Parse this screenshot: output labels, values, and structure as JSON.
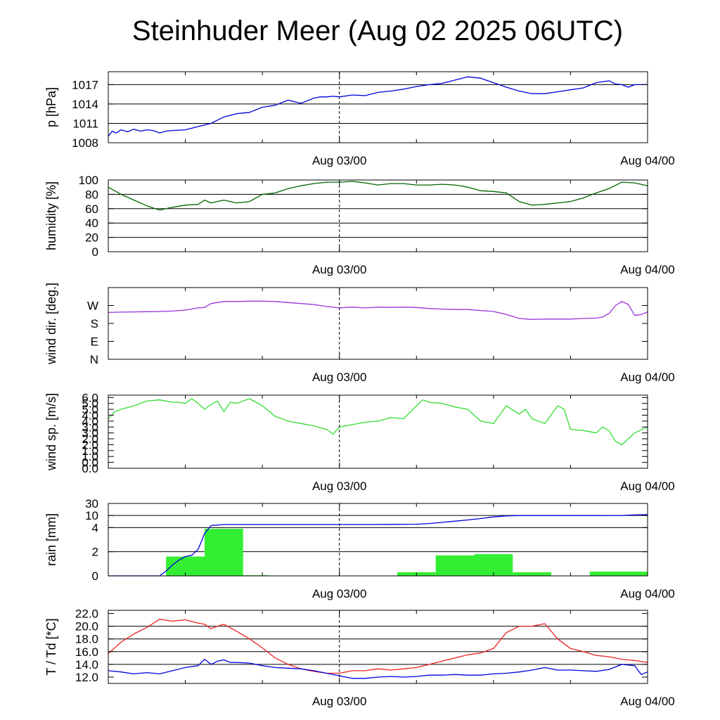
{
  "title": "Steinhuder Meer (Aug 02 2025 06UTC)",
  "x_axis": {
    "start_hours_before_first_label": 18,
    "end_hours_after_first_label": 24,
    "labels": [
      "Aug 03/00",
      "Aug 04/00"
    ]
  },
  "chart_data": [
    {
      "type": "line",
      "ylabel": "p [hPa]",
      "ylim": [
        1008,
        1019
      ],
      "yticks": [
        1008,
        1011,
        1014,
        1017
      ],
      "ytick_labels": [
        "1008",
        "1011",
        "1014",
        "1017"
      ],
      "gridlines": [
        1011,
        1014,
        1017
      ],
      "grid": true,
      "series": [
        {
          "color": "#0000dd",
          "x": [
            0,
            0.3,
            0.6,
            1,
            1.5,
            2,
            2.5,
            3,
            3.5,
            4,
            4.5,
            5,
            6,
            7,
            8,
            9,
            10,
            11,
            12,
            13,
            14,
            15,
            15.5,
            16,
            16.5,
            17,
            17.5,
            18,
            19,
            20,
            21,
            22,
            23,
            24,
            25,
            26,
            27,
            28,
            29,
            30,
            31,
            32,
            33,
            34,
            35,
            36,
            37,
            38,
            39,
            39.5,
            40,
            40.5,
            41,
            42
          ],
          "y": [
            1009.0,
            1009.8,
            1009.5,
            1010.0,
            1009.7,
            1010.1,
            1009.8,
            1010.0,
            1009.9,
            1009.5,
            1009.8,
            1009.9,
            1010.0,
            1010.5,
            1011.0,
            1012.0,
            1012.5,
            1012.7,
            1013.5,
            1013.8,
            1014.6,
            1014.1,
            1014.5,
            1014.9,
            1015.1,
            1015.1,
            1015.2,
            1015.1,
            1015.4,
            1015.3,
            1015.8,
            1016.0,
            1016.3,
            1016.7,
            1017.0,
            1017.2,
            1017.7,
            1018.2,
            1018.0,
            1017.3,
            1016.6,
            1016.0,
            1015.6,
            1015.6,
            1015.9,
            1016.2,
            1016.5,
            1017.3,
            1017.6,
            1017.1,
            1017.0,
            1016.6,
            1017.0,
            1017.0
          ]
        }
      ]
    },
    {
      "type": "line",
      "ylabel": "humidity [%]",
      "ylim": [
        0,
        100
      ],
      "yticks": [
        0,
        20,
        40,
        60,
        80,
        100
      ],
      "ytick_labels": [
        "0",
        "20",
        "40",
        "60",
        "80",
        "100"
      ],
      "gridlines": [
        20,
        40,
        60,
        80
      ],
      "grid": true,
      "series": [
        {
          "color": "#006600",
          "x": [
            0,
            1,
            2,
            3,
            4,
            5,
            6,
            7,
            7.5,
            8,
            8.5,
            9,
            10,
            11,
            12,
            13,
            14,
            15,
            16,
            17,
            18,
            19,
            20,
            21,
            22,
            23,
            24,
            25,
            26,
            27,
            28,
            29,
            30,
            31,
            32,
            33,
            34,
            35,
            36,
            37,
            38,
            39,
            40,
            41,
            42
          ],
          "y": [
            90,
            80,
            72,
            64,
            58,
            62,
            65,
            66,
            72,
            68,
            70,
            72,
            68,
            70,
            80,
            82,
            88,
            92,
            95,
            97,
            97,
            98,
            96,
            93,
            95,
            95,
            93,
            93,
            94,
            93,
            90,
            85,
            84,
            82,
            70,
            65,
            66,
            68,
            70,
            75,
            82,
            88,
            97,
            96,
            92
          ]
        }
      ]
    },
    {
      "type": "line",
      "ylabel": "wind dir. [deg.]",
      "ylim": [
        0,
        360
      ],
      "yticks": [
        0,
        90,
        180,
        270
      ],
      "ytick_labels": [
        "N",
        "E",
        "S",
        "W"
      ],
      "grid": false,
      "series": [
        {
          "color": "#9933dd",
          "x": [
            0,
            1,
            2,
            3,
            4,
            5,
            6,
            7,
            7.5,
            8,
            9,
            10,
            11,
            12,
            13,
            14,
            15,
            16,
            17,
            18,
            19,
            20,
            21,
            22,
            23,
            24,
            25,
            26,
            27,
            28,
            29,
            30,
            31,
            32,
            33,
            34,
            35,
            36,
            37,
            38,
            38.5,
            39,
            39.5,
            40,
            40.5,
            41,
            41.5,
            42
          ],
          "y": [
            235,
            237,
            238,
            239,
            240,
            242,
            247,
            258,
            260,
            280,
            290,
            290,
            292,
            292,
            290,
            285,
            280,
            275,
            265,
            258,
            262,
            258,
            262,
            260,
            262,
            260,
            255,
            252,
            250,
            250,
            245,
            240,
            225,
            205,
            200,
            202,
            202,
            202,
            205,
            207,
            212,
            230,
            270,
            290,
            275,
            220,
            225,
            238
          ]
        }
      ]
    },
    {
      "type": "line",
      "ylabel": "wind sp. [m/s]",
      "ylim": [
        0,
        6.2
      ],
      "yticks": [
        0.0,
        1.0,
        2.0,
        3.0,
        4.0,
        5.0,
        6.0
      ],
      "ytick_labels": [
        "0.0",
        "1.0",
        "2.0",
        "3.0",
        "4.0",
        "5.0",
        "6.0"
      ],
      "extra_tick_labels": [
        {
          "value": 0.5,
          "label": "0.0"
        },
        {
          "value": 1.5,
          "label": "1.0"
        },
        {
          "value": 2.5,
          "label": "2.0"
        },
        {
          "value": 3.5,
          "label": "3.0"
        },
        {
          "value": 4.5,
          "label": "4.0"
        },
        {
          "value": 5.5,
          "label": "5.0"
        }
      ],
      "grid": false,
      "series": [
        {
          "color": "#33dd33",
          "x": [
            0,
            0.5,
            1,
            2,
            3,
            4,
            5,
            5.5,
            6,
            6.5,
            7,
            7.5,
            8,
            8.5,
            9,
            9.5,
            10,
            11,
            12,
            13,
            14,
            15,
            16,
            17,
            17.5,
            18,
            19,
            20,
            21,
            22,
            23,
            24,
            24.5,
            25,
            26,
            27,
            28,
            29,
            30,
            31,
            32,
            32.5,
            33,
            34,
            35,
            35.5,
            36,
            37,
            38,
            38.5,
            39,
            39.5,
            40,
            41,
            42
          ],
          "y": [
            4.2,
            4.8,
            5.0,
            5.3,
            5.7,
            5.8,
            5.6,
            5.6,
            5.5,
            5.9,
            5.5,
            5.0,
            5.4,
            5.7,
            4.8,
            5.6,
            5.5,
            5.9,
            5.3,
            4.4,
            4.0,
            3.8,
            3.6,
            3.3,
            2.9,
            3.5,
            3.7,
            3.9,
            4.0,
            4.3,
            4.2,
            5.3,
            5.8,
            5.6,
            5.5,
            5.2,
            5.0,
            4.0,
            3.8,
            5.3,
            4.6,
            5.0,
            4.2,
            3.8,
            5.3,
            5.0,
            3.3,
            3.2,
            3.0,
            3.5,
            3.2,
            2.3,
            2.0,
            3.0,
            3.5
          ]
        }
      ]
    },
    {
      "type": "bar",
      "ylabel": "rain [mm]",
      "ylim": [
        0,
        30
      ],
      "yticks": [
        0,
        2,
        4,
        10,
        30
      ],
      "ytick_labels": [
        "0",
        "2",
        "4",
        "10",
        "30"
      ],
      "gridlines": [
        2,
        4,
        10
      ],
      "grid": true,
      "bars": {
        "color": "#33ee33",
        "start": [
          4.5,
          7.5,
          10.5,
          22.5,
          25.5,
          28.5,
          31.5,
          37.5
        ],
        "end": [
          7.5,
          10.5,
          12.5,
          25.5,
          28.5,
          31.5,
          34.5,
          42
        ],
        "values": [
          1.6,
          3.9,
          0.05,
          0.3,
          1.7,
          1.8,
          0.3,
          0.35
        ]
      },
      "series": [
        {
          "color": "#0000dd",
          "x": [
            0,
            4,
            4.5,
            5,
            5.5,
            6,
            6.5,
            7,
            7.5,
            8,
            9,
            10,
            12,
            14,
            16,
            18,
            20,
            22,
            24,
            25,
            26,
            27,
            28,
            29,
            30,
            31,
            32,
            34,
            36,
            38,
            40,
            41,
            42
          ],
          "y": [
            0,
            0,
            0.4,
            0.9,
            1.3,
            1.6,
            1.7,
            2.2,
            3.5,
            5.0,
            5.5,
            5.5,
            5.5,
            5.5,
            5.5,
            5.5,
            5.5,
            5.6,
            5.7,
            6.0,
            6.6,
            7.2,
            7.8,
            8.5,
            9.3,
            9.8,
            10.0,
            10.0,
            10.0,
            10.0,
            10.1,
            11.0,
            11.5
          ]
        }
      ]
    },
    {
      "type": "line",
      "ylabel": "T / Td [*C]",
      "ylim": [
        11.0,
        22.5
      ],
      "yticks": [
        12.0,
        14.0,
        16.0,
        18.0,
        20.0,
        22.0
      ],
      "ytick_labels": [
        "12.0",
        "14.0",
        "16.0",
        "18.0",
        "20.0",
        "22.0"
      ],
      "gridlines": [
        14.0,
        16.0,
        18.0,
        20.0
      ],
      "grid": true,
      "series": [
        {
          "name": "T",
          "color": "#ee2222",
          "x": [
            0,
            1,
            2,
            3,
            4,
            5,
            6,
            7,
            7.5,
            8,
            8.5,
            9,
            10,
            11,
            12,
            13,
            14,
            15,
            16,
            17,
            18,
            19,
            20,
            21,
            22,
            23,
            24,
            25,
            26,
            27,
            28,
            29,
            30,
            31,
            32,
            33,
            34,
            35,
            36,
            37,
            38,
            39,
            40,
            41,
            42
          ],
          "y": [
            15.7,
            17.5,
            18.8,
            19.8,
            21.1,
            20.8,
            21.0,
            20.5,
            20.3,
            19.6,
            20.0,
            20.3,
            19.2,
            18.0,
            16.6,
            15.0,
            14.0,
            13.3,
            12.9,
            12.6,
            12.6,
            13.0,
            13.0,
            13.3,
            13.1,
            13.3,
            13.5,
            14.0,
            14.5,
            15.0,
            15.5,
            15.8,
            16.5,
            19.0,
            20.0,
            20.0,
            20.4,
            18.0,
            16.5,
            16.0,
            15.4,
            15.2,
            14.8,
            14.6,
            14.3
          ]
        },
        {
          "name": "Td",
          "color": "#0000dd",
          "x": [
            0,
            1,
            2,
            3,
            4,
            5,
            6,
            7,
            7.5,
            8,
            8.5,
            9,
            9.5,
            10,
            11,
            12,
            13,
            14,
            15,
            16,
            17,
            18,
            19,
            20,
            21,
            22,
            23,
            24,
            25,
            26,
            27,
            28,
            29,
            30,
            31,
            32,
            33,
            34,
            35,
            36,
            37,
            38,
            39,
            40,
            41,
            41.5,
            42
          ],
          "y": [
            13.0,
            12.8,
            12.5,
            12.7,
            12.5,
            13.0,
            13.5,
            13.8,
            14.8,
            14.0,
            14.5,
            14.7,
            14.3,
            14.3,
            14.2,
            13.8,
            13.5,
            13.4,
            13.3,
            13.0,
            12.6,
            12.2,
            11.8,
            11.8,
            12.0,
            12.1,
            12.0,
            12.1,
            12.3,
            12.3,
            12.4,
            12.3,
            12.3,
            12.5,
            12.6,
            12.8,
            13.1,
            13.5,
            13.1,
            13.1,
            13.0,
            12.9,
            13.2,
            14.0,
            13.8,
            12.4,
            12.8
          ]
        }
      ]
    }
  ]
}
